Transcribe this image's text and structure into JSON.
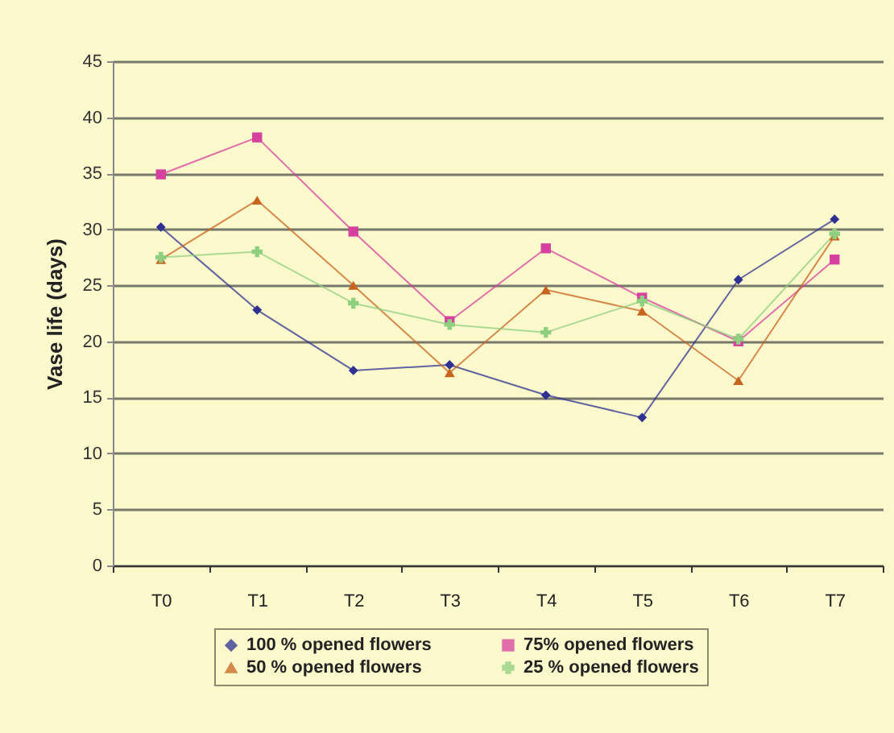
{
  "chart_data": {
    "type": "line",
    "ylabel": "Vase life (days)",
    "categories": [
      "T0",
      "T1",
      "T2",
      "T3",
      "T4",
      "T5",
      "T6",
      "T7"
    ],
    "series": [
      {
        "name": "100 % opened flowers",
        "color": "#2e3192",
        "marker": "diamond",
        "values": [
          30.2,
          22.8,
          17.4,
          17.9,
          15.2,
          13.2,
          25.5,
          30.9
        ]
      },
      {
        "name": "75% opened flowers",
        "color": "#d6409f",
        "marker": "square",
        "values": [
          34.9,
          38.2,
          29.8,
          21.8,
          28.3,
          23.9,
          20.0,
          27.3
        ]
      },
      {
        "name": "50 % opened flowers",
        "color": "#c86420",
        "marker": "triangle",
        "values": [
          27.3,
          32.6,
          25.0,
          17.2,
          24.6,
          22.7,
          16.5,
          29.4
        ]
      },
      {
        "name": "25 % opened flowers",
        "color": "#8fcf80",
        "marker": "cross",
        "values": [
          27.5,
          28.0,
          23.4,
          21.5,
          20.8,
          23.6,
          20.2,
          29.6
        ]
      }
    ],
    "ylim": [
      0,
      45
    ],
    "yticks": [
      0,
      5,
      10,
      15,
      20,
      25,
      30,
      35,
      40,
      45
    ],
    "grid": "y",
    "legend": "bottom",
    "line_style": "solid"
  }
}
